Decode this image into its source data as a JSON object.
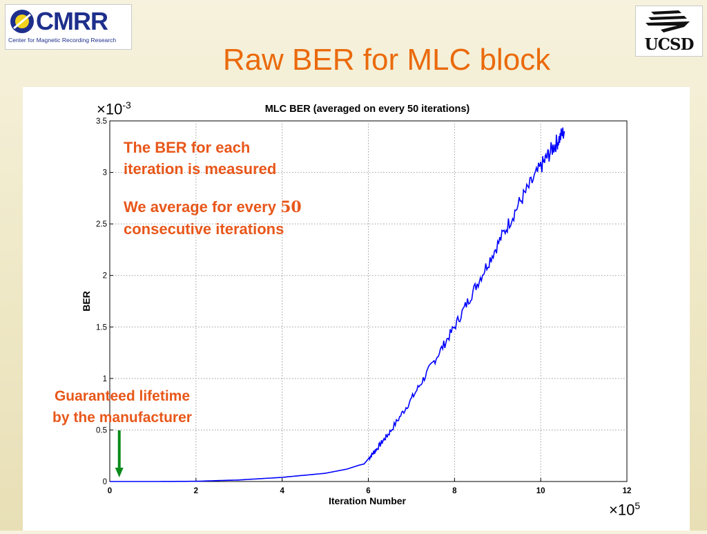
{
  "header": {
    "title": "Raw BER for MLC block",
    "logo_left_text": "CMRR",
    "logo_left_subtitle": "Center for Magnetic Recording Research",
    "logo_right_text": "UCSD"
  },
  "annotations": {
    "line1": "The BER for each",
    "line2": "iteration is measured",
    "line3_prefix": "We average for every ",
    "line3_number": "50",
    "line4": "consecutive iterations",
    "guaranteed_line1": "Guaranteed lifetime",
    "guaranteed_line2": "by the manufacturer"
  },
  "chart_data": {
    "type": "line",
    "title": "MLC BER (averaged on every 50 iterations)",
    "xlabel": "Iteration Number",
    "ylabel": "BER",
    "x_multiplier": "×10",
    "x_exponent": "5",
    "y_multiplier": "×10",
    "y_exponent": "-3",
    "xlim": [
      0,
      12
    ],
    "ylim": [
      0,
      3.5
    ],
    "x_ticks": [
      "0",
      "2",
      "4",
      "6",
      "8",
      "10",
      "12"
    ],
    "y_ticks": [
      "0",
      "0.5",
      "1",
      "1.5",
      "2",
      "2.5",
      "3",
      "3.5"
    ],
    "grid": true,
    "series": [
      {
        "color": "#0000ff",
        "x": [
          0,
          1,
          2,
          3,
          4,
          5,
          5.5,
          5.8,
          5.9,
          6.0,
          6.2,
          6.5,
          7.0,
          7.5,
          8.0,
          8.5,
          9.0,
          9.5,
          10.0,
          10.3,
          10.55
        ],
        "y": [
          0.0,
          0.0,
          0.002,
          0.015,
          0.04,
          0.08,
          0.12,
          0.16,
          0.17,
          0.22,
          0.32,
          0.48,
          0.8,
          1.15,
          1.5,
          1.9,
          2.3,
          2.7,
          3.05,
          3.25,
          3.4
        ]
      }
    ],
    "arrow_color": "#0a8a1a"
  }
}
